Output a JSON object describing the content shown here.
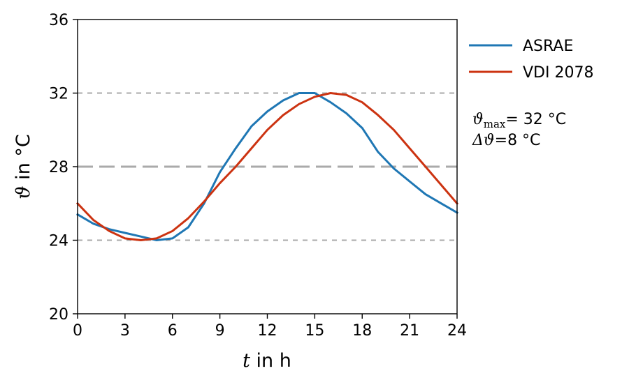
{
  "chart_data": {
    "type": "line",
    "xlim": [
      0,
      24
    ],
    "ylim": [
      20,
      36
    ],
    "xticks": [
      0,
      3,
      6,
      9,
      12,
      15,
      18,
      21,
      24
    ],
    "yticks": [
      20,
      24,
      28,
      32,
      36
    ],
    "xlabel": {
      "var": "t",
      "text": " in h"
    },
    "ylabel": {
      "var": "ϑ",
      "text": " in °C"
    },
    "grid": false,
    "legend": "outside right, top",
    "reference_lines": [
      {
        "y": 32,
        "style": "short-dash",
        "color": "#aaaaaa"
      },
      {
        "y": 28,
        "style": "long-dash",
        "color": "#aaaaaa"
      },
      {
        "y": 24,
        "style": "short-dash",
        "color": "#aaaaaa"
      }
    ],
    "series": [
      {
        "name": "ASRAE",
        "color": "#1f77b4",
        "x": [
          0,
          1,
          2,
          3,
          4,
          5,
          6,
          7,
          8,
          9,
          10,
          11,
          12,
          13,
          14,
          15,
          16,
          17,
          18,
          19,
          20,
          21,
          22,
          23,
          24
        ],
        "y": [
          25.4,
          24.9,
          24.6,
          24.4,
          24.2,
          24.0,
          24.1,
          24.7,
          26.0,
          27.7,
          29.0,
          30.2,
          31.0,
          31.6,
          32.0,
          32.0,
          31.5,
          30.9,
          30.1,
          28.8,
          27.9,
          27.2,
          26.5,
          26.0,
          25.5
        ]
      },
      {
        "name": "VDI 2078",
        "color": "#cc3311",
        "x": [
          0,
          1,
          2,
          3,
          4,
          5,
          6,
          7,
          8,
          9,
          10,
          11,
          12,
          13,
          14,
          15,
          16,
          17,
          18,
          19,
          20,
          21,
          22,
          23,
          24
        ],
        "y": [
          26.0,
          25.1,
          24.5,
          24.1,
          24.0,
          24.1,
          24.5,
          25.2,
          26.1,
          27.1,
          28.0,
          29.0,
          30.0,
          30.8,
          31.4,
          31.8,
          32.0,
          31.9,
          31.5,
          30.8,
          30.0,
          29.0,
          28.0,
          27.0,
          26.0
        ]
      }
    ],
    "annotation": {
      "line1": {
        "var": "ϑ",
        "sub": "max",
        "eq": "=",
        "value": " 32 °C"
      },
      "line2": {
        "var": "Δϑ",
        "eq": "=",
        "value": "8 °C"
      }
    }
  }
}
